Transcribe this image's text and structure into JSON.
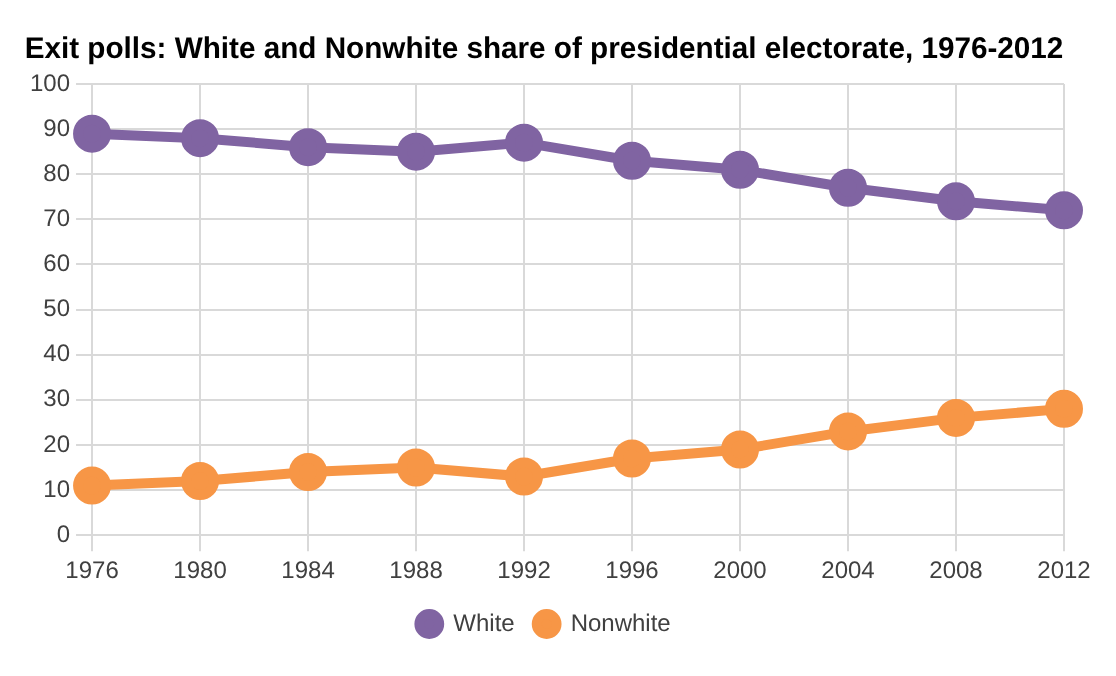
{
  "chart_data": {
    "type": "line",
    "title": "Exit polls: White and Nonwhite share of presidential electorate, 1976-2012",
    "categories": [
      "1976",
      "1980",
      "1984",
      "1988",
      "1992",
      "1996",
      "2000",
      "2004",
      "2008",
      "2012"
    ],
    "series": [
      {
        "name": "White",
        "color": "#8064a2",
        "values": [
          89,
          88,
          86,
          85,
          87,
          83,
          81,
          77,
          74,
          72
        ]
      },
      {
        "name": "Nonwhite",
        "color": "#f79646",
        "values": [
          11,
          12,
          14,
          15,
          13,
          17,
          19,
          23,
          26,
          28
        ]
      }
    ],
    "ylim": [
      0,
      100
    ],
    "yticks": [
      0,
      10,
      20,
      30,
      40,
      50,
      60,
      70,
      80,
      90,
      100
    ],
    "grid": true,
    "legend": "bottom",
    "marker": "circle",
    "line_style": "solid"
  }
}
